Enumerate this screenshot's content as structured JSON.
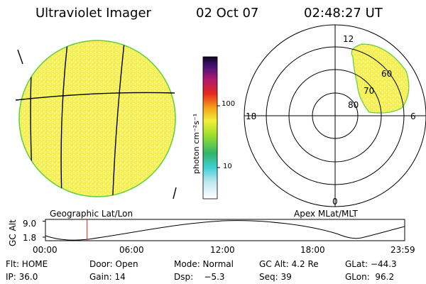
{
  "header": {
    "title": "Ultraviolet Imager",
    "date": "02 Oct 07",
    "time": "02:48:27 UT"
  },
  "left_panel": {
    "caption": "Geographic Lat/Lon"
  },
  "colorbar": {
    "unit": "photon cm⁻²s⁻¹",
    "ticks": [
      "100",
      "10"
    ]
  },
  "right_panel": {
    "caption": "Apex MLat/MLT",
    "mlt_labels": {
      "top": "12",
      "left": "18",
      "right": "6",
      "bottom": "0"
    },
    "lat_labels": [
      "60",
      "70",
      "80"
    ]
  },
  "orbit_plot": {
    "ylabel": "GC Alt",
    "y_ticks": [
      "9.0",
      "1.8"
    ],
    "x_ticks": [
      "00:00",
      "06:00",
      "12:00",
      "18:00",
      "23:59"
    ],
    "current_time_fraction": 0.116
  },
  "info": {
    "flt": "Flt: HOME",
    "door": "Door: Open",
    "mode": "Mode: Normal",
    "gc_alt": "GC Alt: 4.2 Re",
    "glat": "GLat: −44.3",
    "ip": "IP: 36.0",
    "gain": "Gain: 14",
    "dsp": "Dsp:    −5.3",
    "seq": "Seq: 39",
    "glon": "GLon:  96.2"
  },
  "colors": {
    "disk_fill": "#f4ef52",
    "disk_speckle": "#ffffff",
    "disk_edge": "#5fcf3a",
    "grid_line": "#000000",
    "marker": "#c0282b"
  }
}
